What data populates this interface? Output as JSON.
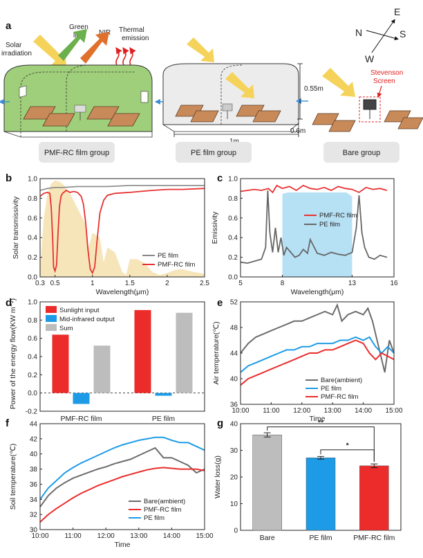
{
  "panels": {
    "a": {
      "letter": "a",
      "labels": {
        "solar": [
          "Solar",
          "irradiation"
        ],
        "green": [
          "Green",
          "light"
        ],
        "nir": "NIR",
        "thermal": [
          "Thermal",
          "emission"
        ],
        "stevenson": [
          "Stevenson",
          "Screen"
        ],
        "height": "0.55m",
        "width": "1m",
        "depth": "0.6m"
      },
      "compass": {
        "n": "N",
        "s": "S",
        "e": "E",
        "w": "W"
      },
      "groups": [
        "PMF-RC film group",
        "PE film group",
        "Bare group"
      ],
      "colors": {
        "green_film": "#9fcf7a",
        "pe_film": "#e8e8e8",
        "box": "#c98a5a",
        "arrow_yellow": "#f5d35a",
        "arrow_green": "#6ab04c",
        "arrow_orange": "#e0702a",
        "thermal": "#e02020"
      }
    },
    "b": {
      "letter": "b",
      "chart_data": {
        "type": "line",
        "xlabel": "Wavelength(μm)",
        "ylabel": "Solar transmissivity",
        "xticks": [
          "0.3",
          "0.5",
          "1",
          "1.5",
          "2",
          "2.5"
        ],
        "xlim": [
          0.3,
          2.5
        ],
        "ylim": [
          0,
          1.0
        ],
        "yticks": [
          "0.0",
          "0.2",
          "0.4",
          "0.6",
          "0.8",
          "1.0"
        ],
        "legend": [
          "PE film",
          "PMF-RC film"
        ],
        "series": [
          {
            "name": "PE film",
            "color": "#888888",
            "x": [
              0.3,
              0.35,
              0.4,
              0.5,
              0.6,
              0.8,
              1.0,
              1.2,
              1.5,
              1.8,
              2.0,
              2.2,
              2.5
            ],
            "y": [
              0.88,
              0.89,
              0.9,
              0.91,
              0.91,
              0.92,
              0.92,
              0.92,
              0.93,
              0.93,
              0.93,
              0.93,
              0.93
            ]
          },
          {
            "name": "PMF-RC film",
            "color": "#e83030",
            "x": [
              0.3,
              0.35,
              0.4,
              0.43,
              0.45,
              0.47,
              0.48,
              0.5,
              0.52,
              0.54,
              0.56,
              0.58,
              0.6,
              0.65,
              0.7,
              0.75,
              0.8,
              0.85,
              0.88,
              0.91,
              0.94,
              0.97,
              1.0,
              1.03,
              1.06,
              1.1,
              1.15,
              1.2,
              1.3,
              1.5,
              1.8,
              2.0,
              2.2,
              2.5
            ],
            "y": [
              0.82,
              0.85,
              0.86,
              0.85,
              0.7,
              0.35,
              0.1,
              0.06,
              0.12,
              0.45,
              0.72,
              0.82,
              0.85,
              0.88,
              0.86,
              0.87,
              0.86,
              0.82,
              0.74,
              0.55,
              0.28,
              0.08,
              0.04,
              0.1,
              0.35,
              0.65,
              0.78,
              0.83,
              0.85,
              0.86,
              0.88,
              0.89,
              0.89,
              0.9
            ]
          }
        ],
        "solar_spectrum": {
          "x": [
            0.3,
            0.35,
            0.4,
            0.45,
            0.5,
            0.55,
            0.6,
            0.7,
            0.8,
            0.9,
            0.95,
            1.0,
            1.1,
            1.15,
            1.2,
            1.3,
            1.4,
            1.45,
            1.5,
            1.6,
            1.7,
            1.8,
            1.9,
            2.0,
            2.1,
            2.2,
            2.3,
            2.5
          ],
          "y": [
            0.1,
            0.6,
            0.85,
            0.95,
            0.98,
            0.97,
            0.95,
            0.85,
            0.7,
            0.55,
            0.3,
            0.45,
            0.4,
            0.15,
            0.3,
            0.25,
            0.05,
            0.02,
            0.18,
            0.18,
            0.14,
            0.05,
            0.02,
            0.04,
            0.07,
            0.08,
            0.06,
            0.03
          ],
          "color": "#f6e2b3"
        }
      }
    },
    "c": {
      "letter": "c",
      "chart_data": {
        "type": "line",
        "xlabel": "Wavelength(μm)",
        "ylabel": "Emissivity",
        "xticks": [
          "5",
          "8",
          "13",
          "16"
        ],
        "xlim": [
          5,
          16
        ],
        "ylim": [
          0,
          1.0
        ],
        "yticks": [
          "0.0",
          "0.2",
          "0.4",
          "0.6",
          "0.8",
          "1.0"
        ],
        "legend": [
          "PMF-RC film",
          "PE film"
        ],
        "series": [
          {
            "name": "PMF-RC film",
            "color": "#e83030",
            "x": [
              5,
              5.5,
              6,
              6.5,
              7,
              7.3,
              7.6,
              8,
              8.5,
              9,
              9.5,
              10,
              10.5,
              11,
              11.5,
              12,
              12.5,
              13,
              13.5,
              14,
              14.5,
              15,
              15.5
            ],
            "y": [
              0.87,
              0.88,
              0.89,
              0.88,
              0.9,
              0.86,
              0.93,
              0.9,
              0.92,
              0.88,
              0.93,
              0.9,
              0.89,
              0.91,
              0.88,
              0.92,
              0.9,
              0.89,
              0.86,
              0.91,
              0.89,
              0.9,
              0.88
            ]
          },
          {
            "name": "PE film",
            "color": "#666666",
            "x": [
              5,
              5.5,
              6,
              6.5,
              6.8,
              6.95,
              7.1,
              7.3,
              7.5,
              7.7,
              7.9,
              8.1,
              8.3,
              8.6,
              8.9,
              9.2,
              9.5,
              9.8,
              10,
              10.5,
              11,
              11.5,
              12,
              12.5,
              13,
              13.3,
              13.5,
              13.7,
              13.9,
              14.2,
              14.6,
              15,
              15.5
            ],
            "y": [
              0.15,
              0.14,
              0.16,
              0.18,
              0.3,
              0.88,
              0.45,
              0.25,
              0.5,
              0.25,
              0.4,
              0.22,
              0.3,
              0.25,
              0.2,
              0.22,
              0.28,
              0.24,
              0.38,
              0.24,
              0.22,
              0.25,
              0.23,
              0.22,
              0.25,
              0.5,
              0.83,
              0.45,
              0.3,
              0.2,
              0.18,
              0.22,
              0.2
            ]
          }
        ],
        "atmos_window": {
          "x0": 8,
          "x1": 13,
          "color": "#a9dbf2"
        }
      }
    },
    "d": {
      "letter": "d",
      "chart_data": {
        "type": "bar",
        "ylabel": "Power of the energy flow(KW m⁻²)",
        "categories": [
          "PMF-RC film",
          "PE film"
        ],
        "ylim": [
          -0.2,
          1.0
        ],
        "yticks": [
          "-0.2",
          "0.0",
          "0.2",
          "0.4",
          "0.6",
          "0.8",
          "1.0"
        ],
        "series": [
          {
            "name": "Sunlight input",
            "color": "#ec2b2b",
            "values": [
              0.64,
              0.91
            ]
          },
          {
            "name": "Mid-infrared output",
            "color": "#1d9be6",
            "values": [
              -0.12,
              -0.03
            ]
          },
          {
            "name": "Sum",
            "color": "#bdbdbd",
            "values": [
              0.52,
              0.88
            ]
          }
        ]
      }
    },
    "e": {
      "letter": "e",
      "chart_data": {
        "type": "line",
        "xlabel": "Time",
        "ylabel": "Air temperature(℃)",
        "xticks": [
          "10:00",
          "11:00",
          "12:00",
          "13:00",
          "14:00",
          "15:00"
        ],
        "xlim": [
          0,
          5
        ],
        "ylim": [
          36,
          52
        ],
        "yticks": [
          "36",
          "40",
          "44",
          "48",
          "52"
        ],
        "legend": [
          "Bare(ambient)",
          "PE film",
          "PMF-RC film"
        ],
        "series": [
          {
            "name": "Bare(ambient)",
            "color": "#6b6b6b",
            "x": [
              0,
              0.25,
              0.5,
              0.75,
              1,
              1.25,
              1.5,
              1.75,
              2,
              2.25,
              2.5,
              2.75,
              3,
              3.15,
              3.3,
              3.5,
              3.75,
              4,
              4.15,
              4.3,
              4.5,
              4.7,
              4.85,
              5
            ],
            "y": [
              44,
              45.5,
              46.5,
              47,
              47.5,
              48,
              48.5,
              49,
              49,
              49.5,
              50,
              50.5,
              50,
              51.5,
              49,
              50,
              50.5,
              50,
              51,
              49,
              45,
              41,
              46,
              44
            ]
          },
          {
            "name": "PE film",
            "color": "#1d9be6",
            "x": [
              0,
              0.25,
              0.5,
              0.75,
              1,
              1.25,
              1.5,
              1.75,
              2,
              2.25,
              2.5,
              2.75,
              3,
              3.25,
              3.5,
              3.75,
              4,
              4.2,
              4.4,
              4.6,
              4.8,
              5
            ],
            "y": [
              41,
              42,
              42.5,
              43,
              43.5,
              44,
              44.5,
              44.5,
              45,
              45,
              45.5,
              45.5,
              45.5,
              46,
              46,
              46.5,
              46,
              46.5,
              45,
              44,
              45,
              44
            ]
          },
          {
            "name": "PMF-RC film",
            "color": "#ec2b2b",
            "x": [
              0,
              0.25,
              0.5,
              0.75,
              1,
              1.25,
              1.5,
              1.75,
              2,
              2.25,
              2.5,
              2.75,
              3,
              3.25,
              3.5,
              3.75,
              4,
              4.2,
              4.4,
              4.6,
              4.8,
              5
            ],
            "y": [
              39,
              40,
              40.5,
              41,
              41.5,
              42,
              42.5,
              43,
              43.5,
              44,
              44,
              44.5,
              44.5,
              45,
              45.5,
              46,
              45.5,
              44,
              43,
              44,
              43.5,
              43
            ]
          }
        ]
      }
    },
    "f": {
      "letter": "f",
      "chart_data": {
        "type": "line",
        "xlabel": "Time",
        "ylabel": "Soil temperature(℃)",
        "xticks": [
          "10:00",
          "11:00",
          "12:00",
          "13:00",
          "14:00",
          "15:00"
        ],
        "xlim": [
          0,
          5
        ],
        "ylim": [
          30,
          44
        ],
        "yticks": [
          "30",
          "32",
          "34",
          "36",
          "38",
          "40",
          "42",
          "44"
        ],
        "legend": [
          "Bare(ambient)",
          "PMF-RC film",
          "PE film"
        ],
        "series": [
          {
            "name": "Bare(ambient)",
            "color": "#6b6b6b",
            "x": [
              0,
              0.25,
              0.5,
              0.75,
              1,
              1.25,
              1.5,
              1.75,
              2,
              2.25,
              2.5,
              2.75,
              3,
              3.25,
              3.5,
              3.75,
              4,
              4.25,
              4.5,
              4.75,
              5
            ],
            "y": [
              33,
              34.5,
              35.5,
              36.2,
              36.8,
              37.2,
              37.6,
              38,
              38.3,
              38.7,
              39,
              39.3,
              39.8,
              40.3,
              40.8,
              39.5,
              39.5,
              39,
              38.5,
              37.5,
              38
            ]
          },
          {
            "name": "PMF-RC film",
            "color": "#ec2b2b",
            "x": [
              0,
              0.25,
              0.5,
              0.75,
              1,
              1.25,
              1.5,
              1.75,
              2,
              2.25,
              2.5,
              2.75,
              3,
              3.25,
              3.5,
              3.75,
              4,
              4.25,
              4.5,
              4.75,
              5
            ],
            "y": [
              31,
              32,
              32.8,
              33.5,
              34.2,
              34.8,
              35.3,
              35.8,
              36.2,
              36.6,
              37,
              37.3,
              37.6,
              37.9,
              38.1,
              38.2,
              38.1,
              38,
              38,
              38,
              37.8
            ]
          },
          {
            "name": "PE film",
            "color": "#1d9be6",
            "x": [
              0,
              0.25,
              0.5,
              0.75,
              1,
              1.25,
              1.5,
              1.75,
              2,
              2.25,
              2.5,
              2.75,
              3,
              3.25,
              3.5,
              3.75,
              4,
              4.25,
              4.5,
              4.75,
              5
            ],
            "y": [
              34,
              35.5,
              36.5,
              37.5,
              38.2,
              38.8,
              39.3,
              39.8,
              40.3,
              40.8,
              41.2,
              41.5,
              41.8,
              42,
              42.2,
              42.2,
              41.8,
              41.5,
              41.5,
              41,
              40.5
            ]
          }
        ]
      }
    },
    "g": {
      "letter": "g",
      "chart_data": {
        "type": "bar",
        "ylabel": "Water loss(g)",
        "categories": [
          "Bare",
          "PE film",
          "PMF-RC film"
        ],
        "values": [
          35.8,
          27.2,
          24.2
        ],
        "errors": [
          0.8,
          0.5,
          0.7
        ],
        "colors": [
          "#bdbdbd",
          "#1d9be6",
          "#ec2b2b"
        ],
        "ylim": [
          0,
          40
        ],
        "yticks": [
          "0",
          "10",
          "20",
          "30",
          "40"
        ],
        "significance": [
          {
            "from": "Bare",
            "to": "PMF-RC film",
            "label": "**"
          },
          {
            "from": "PE film",
            "to": "PMF-RC film",
            "label": "*"
          }
        ]
      }
    }
  }
}
